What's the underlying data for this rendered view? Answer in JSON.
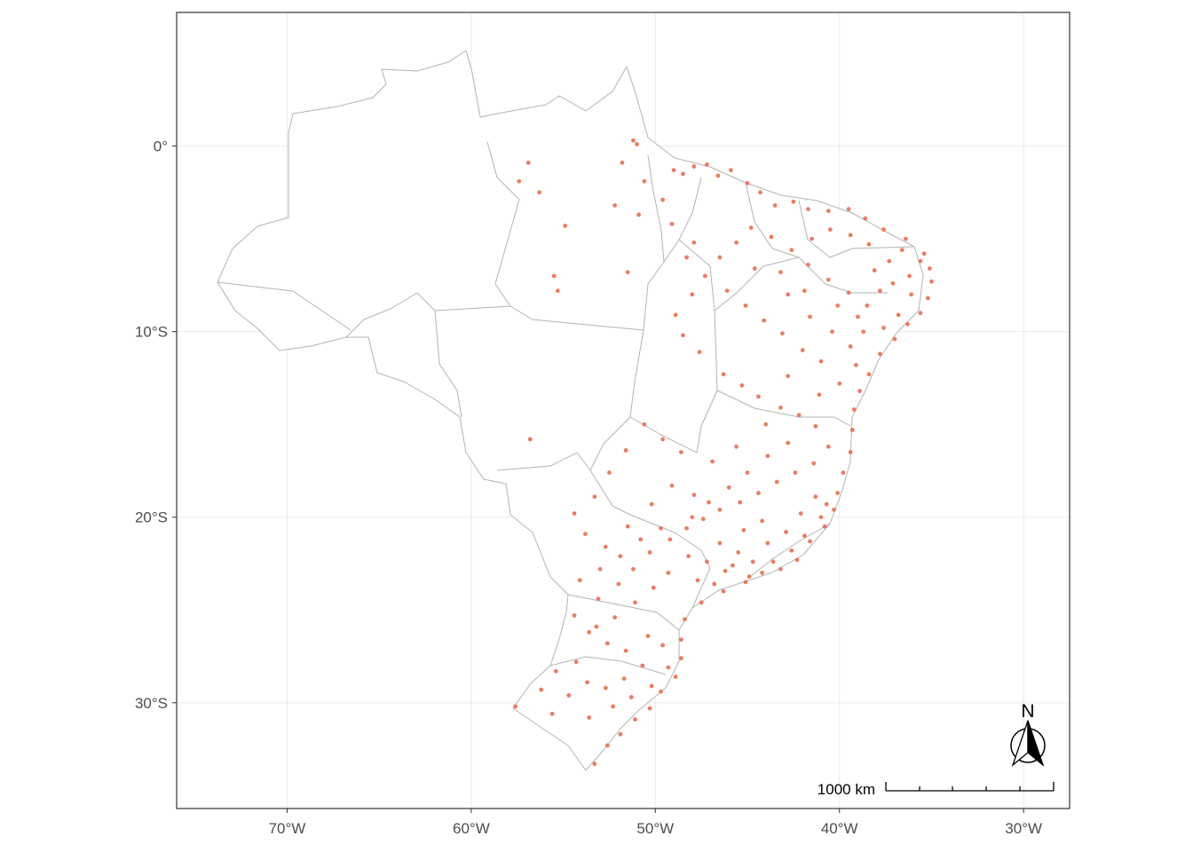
{
  "chart_data": {
    "type": "scatter",
    "title": "",
    "xlabel": "",
    "ylabel": "",
    "xlim": [
      -76,
      -27.5
    ],
    "ylim": [
      -35.7,
      7.2
    ],
    "grid": true,
    "x_ticks": [
      {
        "value": -70,
        "label": "70°W"
      },
      {
        "value": -60,
        "label": "60°W"
      },
      {
        "value": -50,
        "label": "50°W"
      },
      {
        "value": -40,
        "label": "40°W"
      },
      {
        "value": -30,
        "label": "30°W"
      }
    ],
    "y_ticks": [
      {
        "value": 0,
        "label": "0°"
      },
      {
        "value": -10,
        "label": "10°S"
      },
      {
        "value": -20,
        "label": "20°S"
      },
      {
        "value": -30,
        "label": "30°S"
      }
    ],
    "point_color": "#e86f52",
    "border_color": "#b3b3b3",
    "series": [
      {
        "points": [
          [
            -51.2,
            0.3
          ],
          [
            -51.0,
            0.1
          ],
          [
            -51.8,
            -0.9
          ],
          [
            -56.9,
            -0.9
          ],
          [
            -57.4,
            -1.9
          ],
          [
            -56.3,
            -2.5
          ],
          [
            -54.9,
            -4.3
          ],
          [
            -55.5,
            -7.0
          ],
          [
            -55.3,
            -7.8
          ],
          [
            -56.8,
            -15.8
          ],
          [
            -52.2,
            -3.2
          ],
          [
            -51.5,
            -6.8
          ],
          [
            -50.9,
            -3.7
          ],
          [
            -49.0,
            -1.3
          ],
          [
            -48.5,
            -1.5
          ],
          [
            -47.9,
            -1.1
          ],
          [
            -47.2,
            -1.0
          ],
          [
            -46.6,
            -1.6
          ],
          [
            -45.9,
            -1.3
          ],
          [
            -45.0,
            -2.0
          ],
          [
            -44.3,
            -2.5
          ],
          [
            -43.5,
            -3.2
          ],
          [
            -42.5,
            -3.0
          ],
          [
            -41.7,
            -3.4
          ],
          [
            -40.6,
            -3.5
          ],
          [
            -39.5,
            -3.4
          ],
          [
            -38.6,
            -3.9
          ],
          [
            -37.6,
            -4.5
          ],
          [
            -36.4,
            -5.0
          ],
          [
            -35.4,
            -5.8
          ],
          [
            -35.1,
            -6.6
          ],
          [
            -35.0,
            -7.3
          ],
          [
            -35.2,
            -8.2
          ],
          [
            -35.6,
            -9.0
          ],
          [
            -36.3,
            -9.6
          ],
          [
            -37.0,
            -10.4
          ],
          [
            -37.8,
            -11.2
          ],
          [
            -38.4,
            -12.3
          ],
          [
            -38.9,
            -13.2
          ],
          [
            -39.2,
            -14.2
          ],
          [
            -39.3,
            -15.3
          ],
          [
            -39.4,
            -16.5
          ],
          [
            -39.8,
            -17.6
          ],
          [
            -40.1,
            -18.7
          ],
          [
            -40.3,
            -19.6
          ],
          [
            -40.8,
            -20.5
          ],
          [
            -41.6,
            -21.3
          ],
          [
            -42.3,
            -22.3
          ],
          [
            -43.2,
            -22.8
          ],
          [
            -44.2,
            -23.0
          ],
          [
            -45.1,
            -23.5
          ],
          [
            -46.3,
            -24.0
          ],
          [
            -47.5,
            -24.6
          ],
          [
            -48.4,
            -25.5
          ],
          [
            -48.6,
            -26.6
          ],
          [
            -48.6,
            -27.6
          ],
          [
            -48.9,
            -28.6
          ],
          [
            -49.7,
            -29.4
          ],
          [
            -50.3,
            -30.3
          ],
          [
            -51.1,
            -30.9
          ],
          [
            -51.9,
            -31.7
          ],
          [
            -52.6,
            -32.3
          ],
          [
            -53.3,
            -33.3
          ],
          [
            -57.6,
            -30.2
          ],
          [
            -56.2,
            -29.3
          ],
          [
            -55.4,
            -28.3
          ],
          [
            -54.3,
            -27.8
          ],
          [
            -53.6,
            -26.2
          ],
          [
            -54.4,
            -25.3
          ],
          [
            -53.1,
            -24.4
          ],
          [
            -52.0,
            -23.6
          ],
          [
            -51.2,
            -22.8
          ],
          [
            -50.3,
            -21.9
          ],
          [
            -49.2,
            -21.2
          ],
          [
            -48.3,
            -20.6
          ],
          [
            -47.4,
            -20.1
          ],
          [
            -46.5,
            -19.6
          ],
          [
            -45.4,
            -19.2
          ],
          [
            -44.4,
            -18.7
          ],
          [
            -43.4,
            -18.1
          ],
          [
            -42.4,
            -17.6
          ],
          [
            -41.4,
            -17.1
          ],
          [
            -40.6,
            -16.2
          ],
          [
            -41.3,
            -15.1
          ],
          [
            -42.2,
            -14.5
          ],
          [
            -43.2,
            -14.1
          ],
          [
            -44.4,
            -13.5
          ],
          [
            -45.3,
            -12.9
          ],
          [
            -46.3,
            -12.3
          ],
          [
            -47.6,
            -11.1
          ],
          [
            -48.5,
            -10.2
          ],
          [
            -48.9,
            -9.1
          ],
          [
            -48.0,
            -8.0
          ],
          [
            -47.3,
            -7.0
          ],
          [
            -46.5,
            -6.0
          ],
          [
            -45.6,
            -5.2
          ],
          [
            -44.8,
            -4.4
          ],
          [
            -43.7,
            -4.9
          ],
          [
            -42.6,
            -5.6
          ],
          [
            -41.7,
            -6.4
          ],
          [
            -40.6,
            -7.2
          ],
          [
            -39.5,
            -7.9
          ],
          [
            -38.5,
            -8.6
          ],
          [
            -37.3,
            -6.2
          ],
          [
            -38.4,
            -5.3
          ],
          [
            -39.4,
            -4.8
          ],
          [
            -40.5,
            -4.5
          ],
          [
            -41.5,
            -5.0
          ],
          [
            -42.8,
            -8.0
          ],
          [
            -41.6,
            -9.2
          ],
          [
            -40.4,
            -10.0
          ],
          [
            -39.4,
            -10.8
          ],
          [
            -41.0,
            -11.6
          ],
          [
            -42.8,
            -12.4
          ],
          [
            -44.0,
            -15.0
          ],
          [
            -45.6,
            -16.2
          ],
          [
            -46.9,
            -17.0
          ],
          [
            -48.6,
            -16.5
          ],
          [
            -49.6,
            -15.8
          ],
          [
            -50.6,
            -15.0
          ],
          [
            -51.6,
            -16.4
          ],
          [
            -52.5,
            -17.6
          ],
          [
            -53.3,
            -18.9
          ],
          [
            -54.4,
            -19.8
          ],
          [
            -53.8,
            -20.9
          ],
          [
            -52.7,
            -21.6
          ],
          [
            -51.5,
            -20.5
          ],
          [
            -50.2,
            -19.3
          ],
          [
            -49.1,
            -18.3
          ],
          [
            -47.9,
            -18.8
          ],
          [
            -46.5,
            -21.4
          ],
          [
            -45.5,
            -21.9
          ],
          [
            -44.7,
            -22.4
          ],
          [
            -43.9,
            -21.4
          ],
          [
            -42.9,
            -20.8
          ],
          [
            -42.1,
            -19.8
          ],
          [
            -41.3,
            -18.9
          ],
          [
            -44.2,
            -20.2
          ],
          [
            -45.2,
            -20.7
          ],
          [
            -46.2,
            -22.9
          ],
          [
            -47.2,
            -22.4
          ],
          [
            -48.2,
            -22.1
          ],
          [
            -49.3,
            -23.0
          ],
          [
            -50.1,
            -23.8
          ],
          [
            -51.1,
            -24.6
          ],
          [
            -52.2,
            -25.4
          ],
          [
            -53.2,
            -25.9
          ],
          [
            -52.6,
            -26.8
          ],
          [
            -51.6,
            -27.2
          ],
          [
            -50.4,
            -26.4
          ],
          [
            -49.6,
            -26.9
          ],
          [
            -50.7,
            -28.0
          ],
          [
            -51.7,
            -28.7
          ],
          [
            -52.7,
            -29.2
          ],
          [
            -53.7,
            -28.9
          ],
          [
            -54.7,
            -29.6
          ],
          [
            -55.6,
            -30.6
          ],
          [
            -53.6,
            -30.8
          ],
          [
            -52.3,
            -30.2
          ],
          [
            -51.3,
            -29.7
          ],
          [
            -50.2,
            -29.1
          ],
          [
            -49.3,
            -28.1
          ],
          [
            -47.7,
            -23.4
          ],
          [
            -46.8,
            -23.6
          ],
          [
            -45.8,
            -22.6
          ],
          [
            -44.9,
            -23.2
          ],
          [
            -43.6,
            -22.4
          ],
          [
            -42.6,
            -21.8
          ],
          [
            -41.9,
            -21.0
          ],
          [
            -41.0,
            -20.0
          ],
          [
            -40.7,
            -19.3
          ],
          [
            -42.8,
            -16.0
          ],
          [
            -43.9,
            -16.7
          ],
          [
            -45.0,
            -17.6
          ],
          [
            -46.0,
            -18.4
          ],
          [
            -47.1,
            -19.2
          ],
          [
            -48.0,
            -20.0
          ],
          [
            -49.7,
            -20.6
          ],
          [
            -50.8,
            -21.2
          ],
          [
            -51.9,
            -22.1
          ],
          [
            -53.0,
            -22.8
          ],
          [
            -54.1,
            -23.4
          ],
          [
            -38.1,
            -6.7
          ],
          [
            -37.1,
            -7.4
          ],
          [
            -36.1,
            -8.0
          ],
          [
            -36.8,
            -9.1
          ],
          [
            -37.6,
            -9.8
          ],
          [
            -38.7,
            -10.0
          ],
          [
            -39.1,
            -11.8
          ],
          [
            -40.0,
            -12.8
          ],
          [
            -41.1,
            -13.4
          ],
          [
            -42.0,
            -11.0
          ],
          [
            -43.1,
            -10.1
          ],
          [
            -44.1,
            -9.4
          ],
          [
            -45.1,
            -8.6
          ],
          [
            -46.1,
            -7.8
          ],
          [
            -44.6,
            -6.6
          ],
          [
            -43.2,
            -6.8
          ],
          [
            -41.9,
            -7.8
          ],
          [
            -40.1,
            -8.6
          ],
          [
            -39.0,
            -9.2
          ],
          [
            -36.6,
            -5.6
          ],
          [
            -35.6,
            -6.2
          ],
          [
            -36.2,
            -7.0
          ],
          [
            -37.8,
            -7.8
          ],
          [
            -48.3,
            -6.0
          ],
          [
            -47.9,
            -5.2
          ],
          [
            -49.1,
            -4.2
          ],
          [
            -49.6,
            -2.9
          ],
          [
            -50.6,
            -1.9
          ]
        ]
      }
    ]
  },
  "scale_bar": {
    "label": "1000 km"
  },
  "north_arrow": {
    "label": "N"
  }
}
